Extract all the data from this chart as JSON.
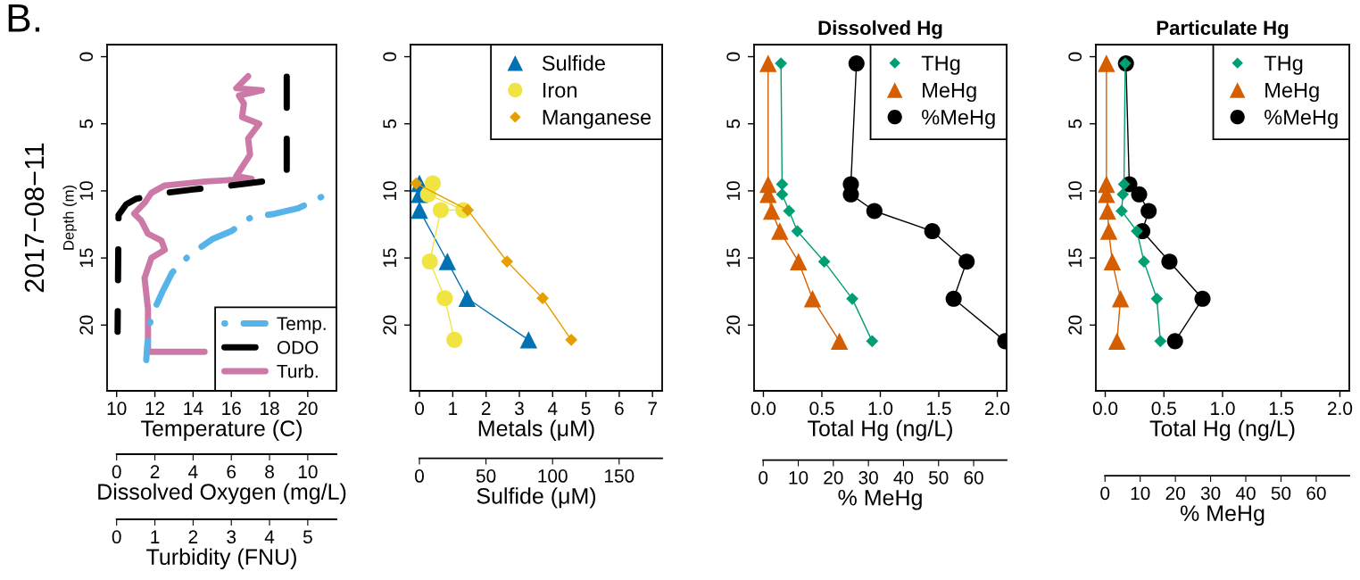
{
  "chart_data": [
    {
      "type": "line",
      "annotations": [
        "B.",
        "2017−08−11"
      ],
      "ylabel": "Depth (m)",
      "xlabel": "Temperature (C)",
      "x2label": "Dissolved Oxygen (mg/L)",
      "xlim": [
        9.5,
        21.5
      ],
      "xticks": [
        10,
        12,
        14,
        16,
        18,
        20
      ],
      "x2lim": [
        -0.5,
        11.5
      ],
      "x2ticks": [
        0,
        2,
        4,
        6,
        8,
        10
      ],
      "ylim": [
        24.9,
        -0.9
      ],
      "yticks": [
        0,
        5,
        10,
        15,
        20
      ],
      "grid": false,
      "legend": "bottom right",
      "series": [
        {
          "name": "Temp.",
          "color": "#56b4e9",
          "marker": "none",
          "line_style": "dashdot",
          "x": [
            20.7,
            19.5,
            18.3,
            17.0,
            16.0,
            15.0,
            13.8,
            12.9,
            12.4,
            11.8,
            11.6,
            11.55
          ],
          "values": [
            10.46,
            11.3,
            11.7,
            12.0,
            13.0,
            13.6,
            14.8,
            16.1,
            17.5,
            19.4,
            21.5,
            22.6
          ]
        },
        {
          "name": "ODO",
          "color": "#000000",
          "marker": "none",
          "line_style": "dashed",
          "axis": "x2",
          "x": [
            8.9,
            8.9,
            8.7,
            8.2,
            6.0,
            4.0,
            2.3,
            1.0,
            0.5,
            0.1,
            0.05
          ],
          "values": [
            1.5,
            8.5,
            9.1,
            9.2,
            9.6,
            9.9,
            10.2,
            10.6,
            11.0,
            11.8,
            20.5
          ]
        }
      ]
    },
    {
      "type": "line",
      "xlabel": "Turbidity (FNU)",
      "xlim": [
        -0.25,
        5.75
      ],
      "xticks": [
        0,
        1,
        2,
        3,
        4,
        5
      ],
      "ylim": [
        34.48,
        -0.9
      ],
      "yticks": [
        0,
        5,
        10,
        15,
        20
      ],
      "tick_labels": "x",
      "series": [
        {
          "name": "Turb.",
          "color": "#cc79a7",
          "marker": "none",
          "line_style": "solid",
          "x": [
            3.44,
            3.13,
            3.8,
            3.2,
            3.33,
            3.28,
            3.73,
            3.44,
            3.49,
            3.31,
            3.13,
            3.53,
            2.33,
            1.26,
            0.91,
            0.73,
            0.46,
            0.64,
            0.82,
            1.17,
            1.26,
            0.91,
            0.73,
            0.82,
            0.82,
            0.82,
            2.3
          ],
          "values": [
            1.46,
            2.35,
            2.5,
            2.9,
            3.5,
            4.5,
            5.0,
            6.1,
            7.3,
            8.1,
            8.9,
            9.1,
            9.3,
            9.6,
            10.15,
            10.9,
            11.7,
            12.2,
            13.2,
            13.7,
            14.4,
            15.0,
            16.5,
            18.8,
            20.9,
            22.0,
            22.0
          ]
        }
      ]
    },
    {
      "type": "line",
      "xlabel": "Metals (μM)",
      "x2label": "Sulfide (μM)",
      "xlim": [
        -0.27,
        7.29
      ],
      "xticks": [
        0,
        1,
        2,
        3,
        4,
        5,
        6,
        7
      ],
      "x2lim": [
        -6.7,
        182.3
      ],
      "x2ticks": [
        0,
        50,
        100,
        150
      ],
      "ylim": [
        24.9,
        -0.9
      ],
      "yticks": [
        0,
        5,
        10,
        15,
        20
      ],
      "grid": false,
      "legend": "top right",
      "series": [
        {
          "name": "Sulfide",
          "color": "#0072b2",
          "marker": "triangle",
          "line_style": "solid",
          "axis": "x2",
          "x": [
            0,
            0,
            0,
            21,
            35.8,
            82
          ],
          "values": [
            9.44,
            10.26,
            11.43,
            15.26,
            18.0,
            21.1
          ]
        },
        {
          "name": "Iron",
          "color": "#f0e442",
          "marker": "circle",
          "line_style": "solid",
          "x": [
            0.4,
            0.26,
            1.32,
            0.64,
            0.31,
            0.76,
            1.05
          ],
          "values": [
            9.44,
            10.26,
            11.43,
            11.43,
            15.26,
            18.0,
            21.1
          ]
        },
        {
          "name": "Manganese",
          "color": "#e69f00",
          "marker": "diamond",
          "line_style": "solid",
          "x": [
            -0.1,
            1.45,
            2.63,
            3.7,
            4.56
          ],
          "values": [
            9.44,
            11.43,
            15.26,
            18.0,
            21.1
          ]
        }
      ]
    },
    {
      "type": "line",
      "title": "Dissolved Hg",
      "xlabel": "Total Hg (ng/L)",
      "x2label": "% MeHg",
      "xlim": [
        -0.08,
        2.08
      ],
      "xticks": [
        {
          "value": 0,
          "label": "0.0"
        },
        0.5,
        {
          "value": 1,
          "label": "1.0"
        },
        1.5,
        {
          "value": 2,
          "label": "2.0"
        }
      ],
      "x2lim": [
        -2.6,
        69.4
      ],
      "x2ticks": [
        0,
        10,
        20,
        30,
        40,
        50,
        60
      ],
      "ylim": [
        24.9,
        -0.9
      ],
      "yticks": [
        0,
        5,
        10,
        15,
        20
      ],
      "grid": false,
      "legend": "top right",
      "series": [
        {
          "name": "THg",
          "color": "#009e73",
          "marker": "diamond",
          "line_style": "solid",
          "x": [
            0.15,
            0.16,
            0.16,
            0.22,
            0.29,
            0.52,
            0.76,
            0.93
          ],
          "values": [
            0.5,
            9.5,
            10.26,
            11.5,
            13.0,
            15.27,
            18.04,
            21.2
          ]
        },
        {
          "name": "MeHg",
          "color": "#d55e00",
          "marker": "triangle",
          "line_style": "solid",
          "x": [
            0.04,
            0.04,
            0.04,
            0.07,
            0.14,
            0.3,
            0.42,
            0.65
          ],
          "values": [
            0.5,
            9.5,
            10.26,
            11.5,
            13.0,
            15.27,
            18.04,
            21.2
          ]
        },
        {
          "name": "%MeHg",
          "color": "#000000",
          "marker": "circle",
          "line_style": "solid",
          "axis": "x2",
          "x": [
            26.6,
            25.0,
            25.0,
            31.7,
            48.2,
            58.0,
            54.3,
            69.0
          ],
          "values": [
            0.5,
            9.5,
            10.26,
            11.5,
            13.0,
            15.27,
            18.04,
            21.2
          ]
        }
      ]
    },
    {
      "type": "line",
      "title": "Particulate Hg",
      "xlabel": "Total Hg (ng/L)",
      "x2label": "% MeHg",
      "xlim": [
        -0.08,
        2.08
      ],
      "xticks": [
        {
          "value": 0,
          "label": "0.0"
        },
        0.5,
        {
          "value": 1,
          "label": "1.0"
        },
        1.5,
        {
          "value": 2,
          "label": "2.0"
        }
      ],
      "x2lim": [
        -2.6,
        69.4
      ],
      "x2ticks": [
        0,
        10,
        20,
        30,
        40,
        50,
        60
      ],
      "ylim": [
        24.9,
        -0.9
      ],
      "yticks": [
        0,
        5,
        10,
        15,
        20
      ],
      "grid": false,
      "legend": "top right",
      "series": [
        {
          "name": "THg",
          "color": "#009e73",
          "marker": "diamond",
          "line_style": "solid",
          "x": [
            0.17,
            0.16,
            0.15,
            0.14,
            0.27,
            0.33,
            0.44,
            0.47
          ],
          "values": [
            0.5,
            9.5,
            10.26,
            11.5,
            13.0,
            15.27,
            18.04,
            21.2
          ]
        },
        {
          "name": "MeHg",
          "color": "#d55e00",
          "marker": "triangle",
          "line_style": "solid",
          "x": [
            0.01,
            0.01,
            0.01,
            0.02,
            0.03,
            0.06,
            0.13,
            0.1
          ],
          "values": [
            0.5,
            9.5,
            10.26,
            11.5,
            13.0,
            15.27,
            18.04,
            21.2
          ]
        },
        {
          "name": "%MeHg",
          "color": "#000000",
          "marker": "circle",
          "line_style": "solid",
          "axis": "x2",
          "x": [
            5.95,
            6.9,
            9.7,
            12.4,
            10.6,
            18.3,
            27.7,
            19.9
          ],
          "values": [
            0.5,
            9.5,
            10.26,
            11.5,
            13.0,
            15.27,
            18.04,
            21.2
          ]
        }
      ]
    }
  ]
}
